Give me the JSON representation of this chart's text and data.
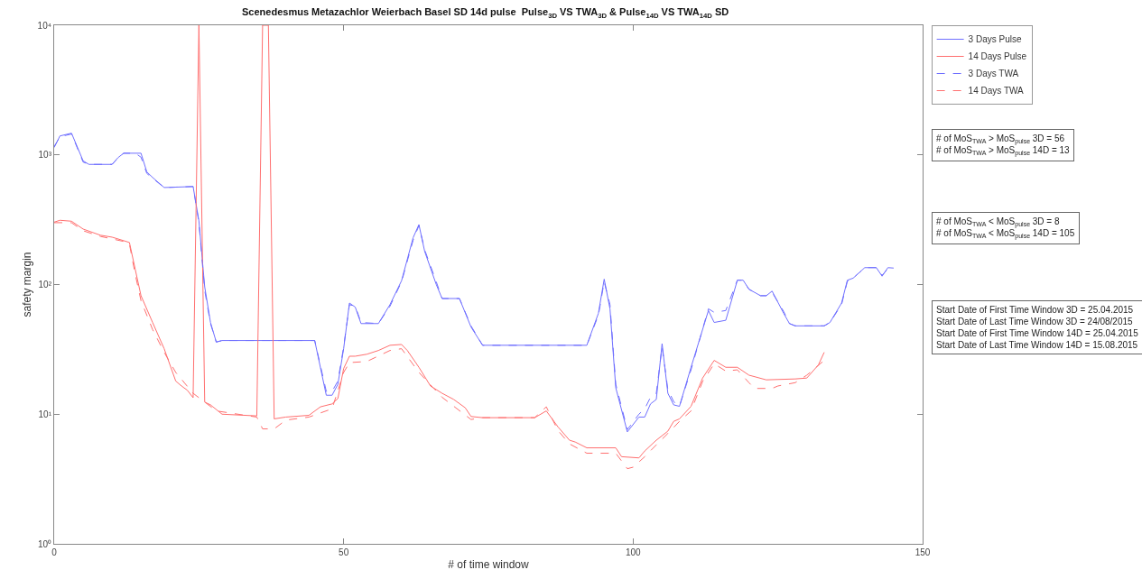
{
  "chart_data": {
    "type": "line",
    "title": "Scenedesmus Metazachlor Weierbach Basel SD 14d pulse  Pulse$_{3D}$ VS TWA$_{3D}$ & Pulse$_{14D}$ VS TWA$_{14D}$ SD",
    "xlabel": "# of time window",
    "ylabel": "safety margin",
    "log": "y",
    "xlim": [
      0,
      150
    ],
    "xticks": [
      0,
      50,
      100,
      150
    ],
    "ylim": [
      1,
      10000
    ],
    "yticks": [
      {
        "value": 1,
        "label": "10⁰"
      },
      {
        "value": 10,
        "label": "10¹"
      },
      {
        "value": 100,
        "label": "10²"
      },
      {
        "value": 1000,
        "label": "10³"
      },
      {
        "value": 10000,
        "label": "10⁴"
      }
    ],
    "grid": false,
    "legend": "top right",
    "series": [
      {
        "name": "3 Days Pulse",
        "color": "#6f6fff",
        "line_style": "solid",
        "x": [
          0,
          1,
          3,
          5,
          6,
          10,
          11,
          12,
          15,
          16,
          17,
          19,
          24,
          25,
          26,
          27,
          28,
          29,
          45,
          47,
          48,
          49,
          50,
          51,
          52,
          53,
          56,
          58,
          60,
          62,
          63,
          64,
          66,
          67,
          70,
          72,
          74,
          92,
          94,
          95,
          96,
          97,
          99,
          101,
          102,
          103,
          104,
          105,
          106,
          107,
          108,
          110,
          113,
          114,
          116,
          118,
          119,
          120,
          122,
          123,
          124,
          126,
          127,
          128,
          133,
          134,
          136,
          137,
          138,
          140,
          142,
          143,
          144,
          145
        ],
        "values": [
          1140,
          1400,
          1470,
          900,
          845,
          845,
          950,
          1030,
          1030,
          740,
          670,
          560,
          570,
          310,
          96,
          51,
          36,
          37,
          37,
          14,
          14,
          17,
          32,
          72,
          67,
          50,
          50,
          70,
          107,
          230,
          290,
          180,
          100,
          78,
          78,
          47,
          34,
          34,
          60,
          110,
          65,
          16,
          7.3,
          9.5,
          9.5,
          12,
          13,
          35,
          14.5,
          11.8,
          11.5,
          23,
          63,
          51,
          53,
          108,
          108,
          92,
          82,
          82,
          89,
          60,
          50,
          48,
          48,
          51,
          72,
          108,
          112,
          135,
          135,
          116,
          135,
          134
        ]
      },
      {
        "name": "14 Days Pulse",
        "color": "#ff6f6f",
        "line_style": "solid",
        "x": [
          0,
          1,
          3,
          5,
          8,
          10,
          12,
          13,
          14,
          15,
          17,
          19,
          21,
          22,
          23,
          24,
          25,
          26,
          27,
          29,
          35,
          36,
          37,
          38,
          40,
          44,
          46,
          48,
          49,
          50,
          51,
          52,
          54,
          56,
          58,
          60,
          61,
          63,
          65,
          67,
          69,
          71,
          72,
          74,
          83,
          85,
          87,
          89,
          90,
          92,
          97,
          98,
          101,
          102,
          104,
          106,
          107,
          108,
          110,
          112,
          114,
          116,
          118,
          120,
          123,
          128,
          130,
          132,
          133
        ],
        "values": [
          303,
          313,
          308,
          268,
          240,
          232,
          218,
          211,
          131,
          82,
          51,
          32,
          18,
          16.5,
          15.3,
          13.4,
          10000,
          12.4,
          11.8,
          10,
          9.7,
          10000,
          10000,
          9.2,
          9.5,
          9.8,
          11.4,
          12,
          13.2,
          22.5,
          28,
          28,
          29,
          31,
          34,
          34.5,
          31,
          23,
          16.5,
          14.5,
          13,
          11.2,
          9.6,
          9.4,
          9.4,
          10.6,
          8,
          6.3,
          6.1,
          5.5,
          5.5,
          4.7,
          4.6,
          5.2,
          6.3,
          7.4,
          8.8,
          9.2,
          11.5,
          19,
          26,
          23,
          23,
          20,
          18.4,
          18.7,
          19,
          24,
          30
        ]
      },
      {
        "name": "3 Days TWA",
        "color": "#6f6fff",
        "line_style": "dashed",
        "x": [
          0,
          1,
          3,
          5,
          6,
          10,
          11,
          12,
          14,
          15,
          16,
          17,
          19,
          24,
          25,
          26,
          27,
          28,
          29,
          45,
          47,
          48,
          49,
          50,
          51,
          52,
          53,
          56,
          58,
          60,
          62,
          63,
          64,
          66,
          67,
          70,
          72,
          74,
          92,
          94,
          95,
          96,
          97,
          99,
          101,
          102,
          103,
          104,
          105,
          106,
          107,
          108,
          110,
          113,
          114,
          116,
          118,
          119,
          120,
          122,
          123,
          124,
          126,
          127,
          128,
          133,
          134,
          136,
          137,
          138,
          140,
          142,
          143,
          144,
          145
        ],
        "values": [
          1160,
          1380,
          1450,
          880,
          845,
          845,
          940,
          1030,
          1030,
          960,
          720,
          660,
          560,
          570,
          300,
          90,
          50,
          36,
          37,
          37,
          15,
          15,
          18,
          33,
          70,
          68,
          51,
          50,
          68,
          105,
          220,
          285,
          185,
          105,
          78,
          78,
          48,
          34,
          34,
          58,
          105,
          70,
          17,
          7.6,
          10,
          11,
          13.5,
          14.5,
          33,
          15.5,
          12.5,
          11.5,
          22,
          65,
          61,
          63,
          108,
          108,
          92,
          82,
          82,
          87,
          62,
          50,
          48,
          48,
          51,
          70,
          106,
          112,
          135,
          135,
          118,
          132,
          134
        ]
      },
      {
        "name": "14 Days TWA",
        "color": "#ff6f6f",
        "line_style": "dashed",
        "x": [
          0,
          3,
          5,
          8,
          10,
          12,
          13,
          14,
          15,
          17,
          19,
          21,
          24,
          25,
          26,
          28,
          35,
          36,
          38,
          40,
          44,
          48,
          50,
          51,
          54,
          58,
          60,
          63,
          67,
          72,
          74,
          83,
          85,
          87,
          89,
          92,
          97,
          99,
          100,
          102,
          104,
          106,
          108,
          110,
          112,
          114,
          116,
          118,
          120,
          121,
          124,
          125,
          128,
          130,
          133
        ],
        "values": [
          300,
          300,
          260,
          235,
          225,
          215,
          205,
          120,
          75,
          45,
          30,
          21,
          14.5,
          13.4,
          12.4,
          10.6,
          9.5,
          7.7,
          7.7,
          9,
          9.5,
          11,
          21,
          25,
          25.5,
          31,
          32,
          21,
          13.5,
          9.1,
          9.4,
          9.4,
          11.4,
          7.5,
          5.9,
          5,
          5,
          3.8,
          3.9,
          4.7,
          5.8,
          7.1,
          8.8,
          10.6,
          17.9,
          24.5,
          21.5,
          22,
          17.5,
          15.8,
          15.8,
          16.5,
          17.5,
          20,
          26
        ]
      }
    ],
    "annotations": [
      "# of MoS$_{TWA}$ > MoS$_{pulse}$ 3D = 56\n# of MoS$_{TWA}$ > MoS$_{pulse}$ 14D = 13",
      "# of MoS$_{TWA}$ < MoS$_{pulse}$ 3D = 8\n# of MoS$_{TWA}$ < MoS$_{pulse}$ 14D = 105",
      "Start Date of First Time Window 3D = 25.04.2015\nStart Date of Last Time Window 3D = 24/08/2015\nStart Date of First Time Window 14D = 25.04.2015\nStart Date of Last Time Window 14D = 15.08.2015"
    ]
  }
}
